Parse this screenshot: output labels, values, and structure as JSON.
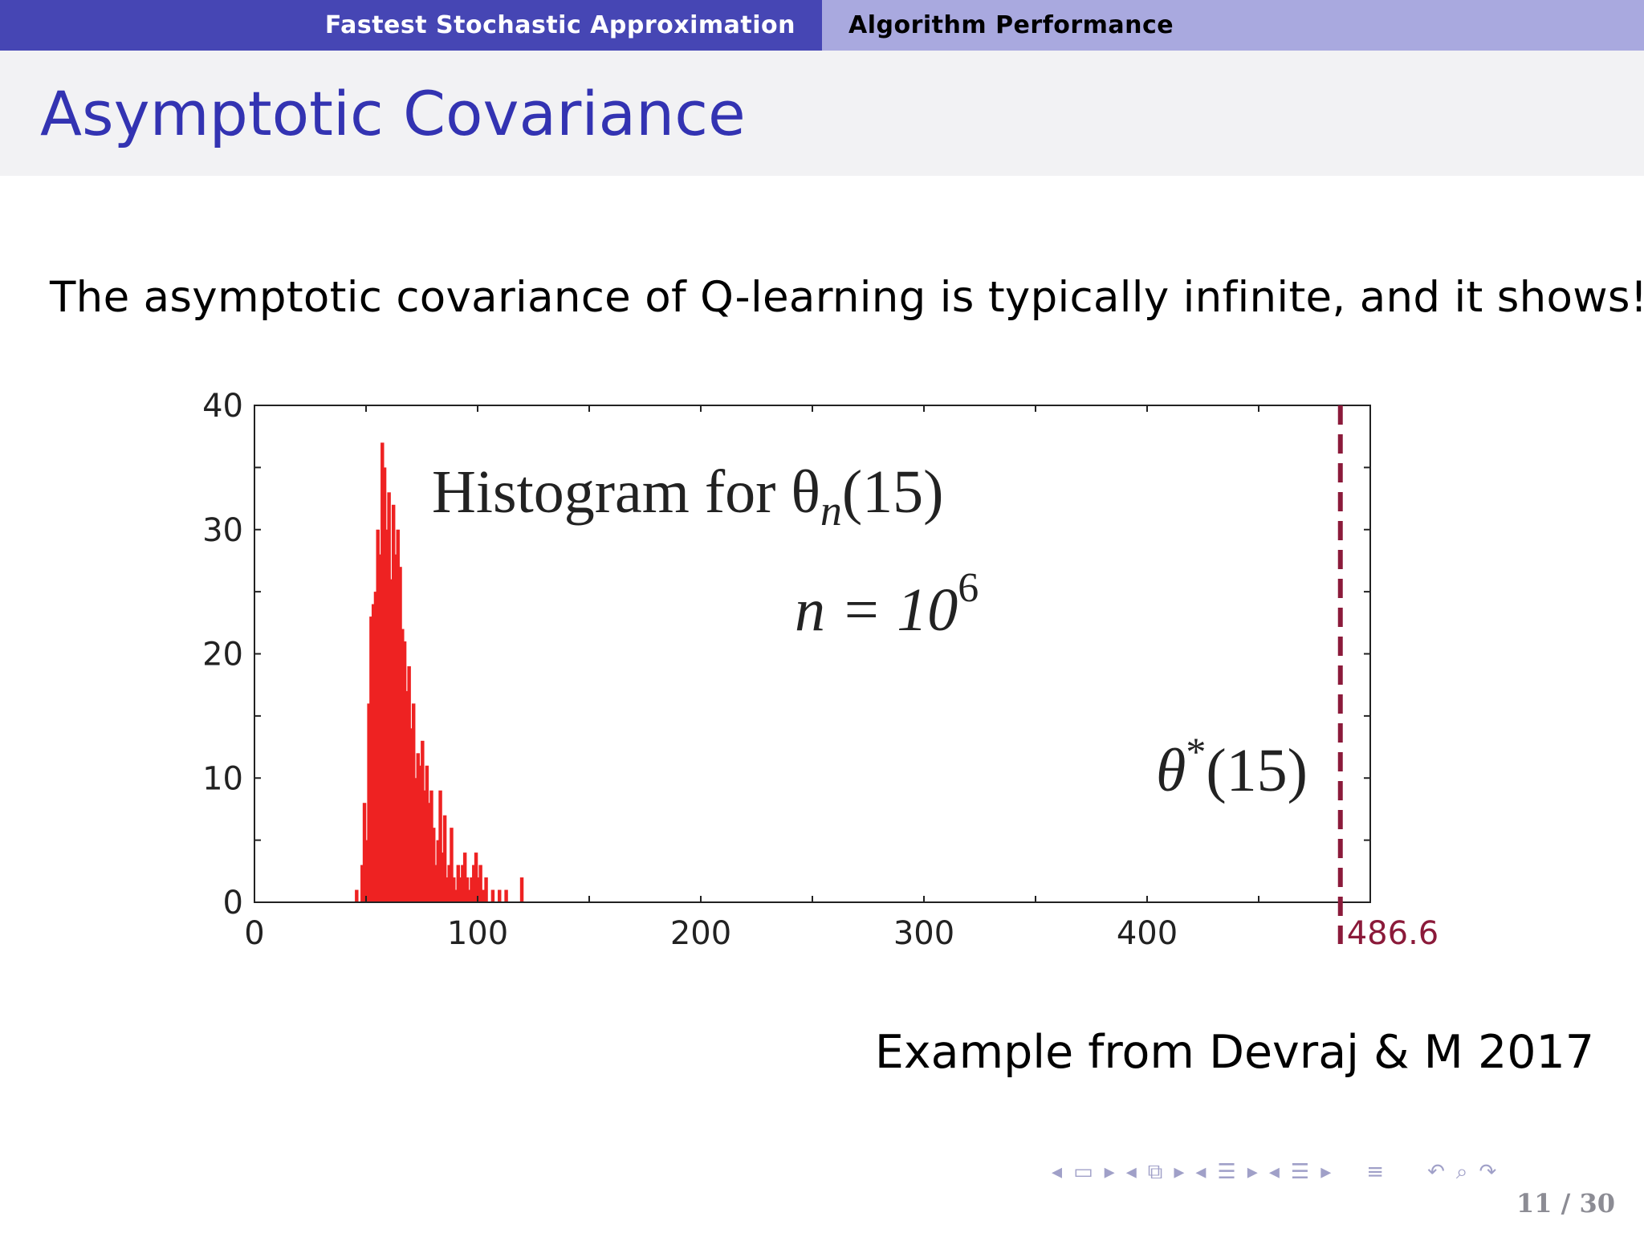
{
  "headline": {
    "section_left": "Fastest Stochastic Approximation",
    "section_right": "Algorithm Performance"
  },
  "title": "Asymptotic Covariance",
  "intro": "The asymptotic covariance of Q-learning is typically infinite, and it shows!",
  "credit": "Example from Devraj & M 2017",
  "page_number": "11 / 30",
  "colors": {
    "accent": "#3333b2",
    "bar": "#ee2222",
    "marker": "#8b1a3a"
  },
  "chart_data": {
    "type": "bar",
    "annotation_title": "Histogram for θ",
    "annotation_title_sub": "n",
    "annotation_title_arg": "(15)",
    "annotation_n": "n = 10",
    "annotation_n_exp": "6",
    "marker_label_main": "θ",
    "marker_label_sup": "*",
    "marker_label_arg": "(15)",
    "marker_value": 486.6,
    "marker_value_label": "486.6",
    "xlim": [
      0,
      500
    ],
    "ylim": [
      0,
      40
    ],
    "xticks": [
      0,
      100,
      200,
      300,
      400
    ],
    "yticks": [
      0,
      10,
      20,
      30,
      40
    ],
    "xlabel": "",
    "ylabel": "",
    "bin_width": 1.6,
    "bin_starts": [
      45,
      47.5,
      48.5,
      49.5,
      50.5,
      51.5,
      52.5,
      53.5,
      54.5,
      55.5,
      56.5,
      57.5,
      58.5,
      59.5,
      60.5,
      61.5,
      62.5,
      63.5,
      64.5,
      65.5,
      66.5,
      67.5,
      68.5,
      69.5,
      70.5,
      71.5,
      72.5,
      73.5,
      74.5,
      75.5,
      76.5,
      77.5,
      78.5,
      79.5,
      80.5,
      81.5,
      82.5,
      83.5,
      84.5,
      85.5,
      86.5,
      87.5,
      88.5,
      89.5,
      90.5,
      91.5,
      92.5,
      93.5,
      94.5,
      95.5,
      96.5,
      97.5,
      98.5,
      99.5,
      100.5,
      101.5,
      103,
      106,
      109,
      112,
      119
    ],
    "values": [
      1,
      3,
      8,
      5,
      16,
      23,
      24,
      25,
      30,
      28,
      37,
      35,
      30,
      33,
      26,
      32,
      28,
      30,
      27,
      22,
      21,
      17,
      19,
      14,
      16,
      10,
      12,
      11,
      13,
      9,
      11,
      8,
      9,
      6,
      3,
      5,
      9,
      4,
      7,
      2,
      3,
      6,
      2,
      1,
      3,
      2,
      3,
      4,
      2,
      1,
      2,
      3,
      4,
      2,
      3,
      1,
      2,
      1,
      1,
      1,
      2
    ]
  },
  "nav_icons": [
    "left-arrow-icon",
    "frame-icon",
    "right-arrow-icon",
    "left-arrow-icon",
    "subsection-icon",
    "right-arrow-icon",
    "left-arrow-icon",
    "section-icon",
    "right-arrow-icon",
    "left-arrow-icon",
    "document-icon",
    "right-arrow-icon",
    "align-icon",
    "undo-icon",
    "search-icon",
    "redo-icon"
  ]
}
